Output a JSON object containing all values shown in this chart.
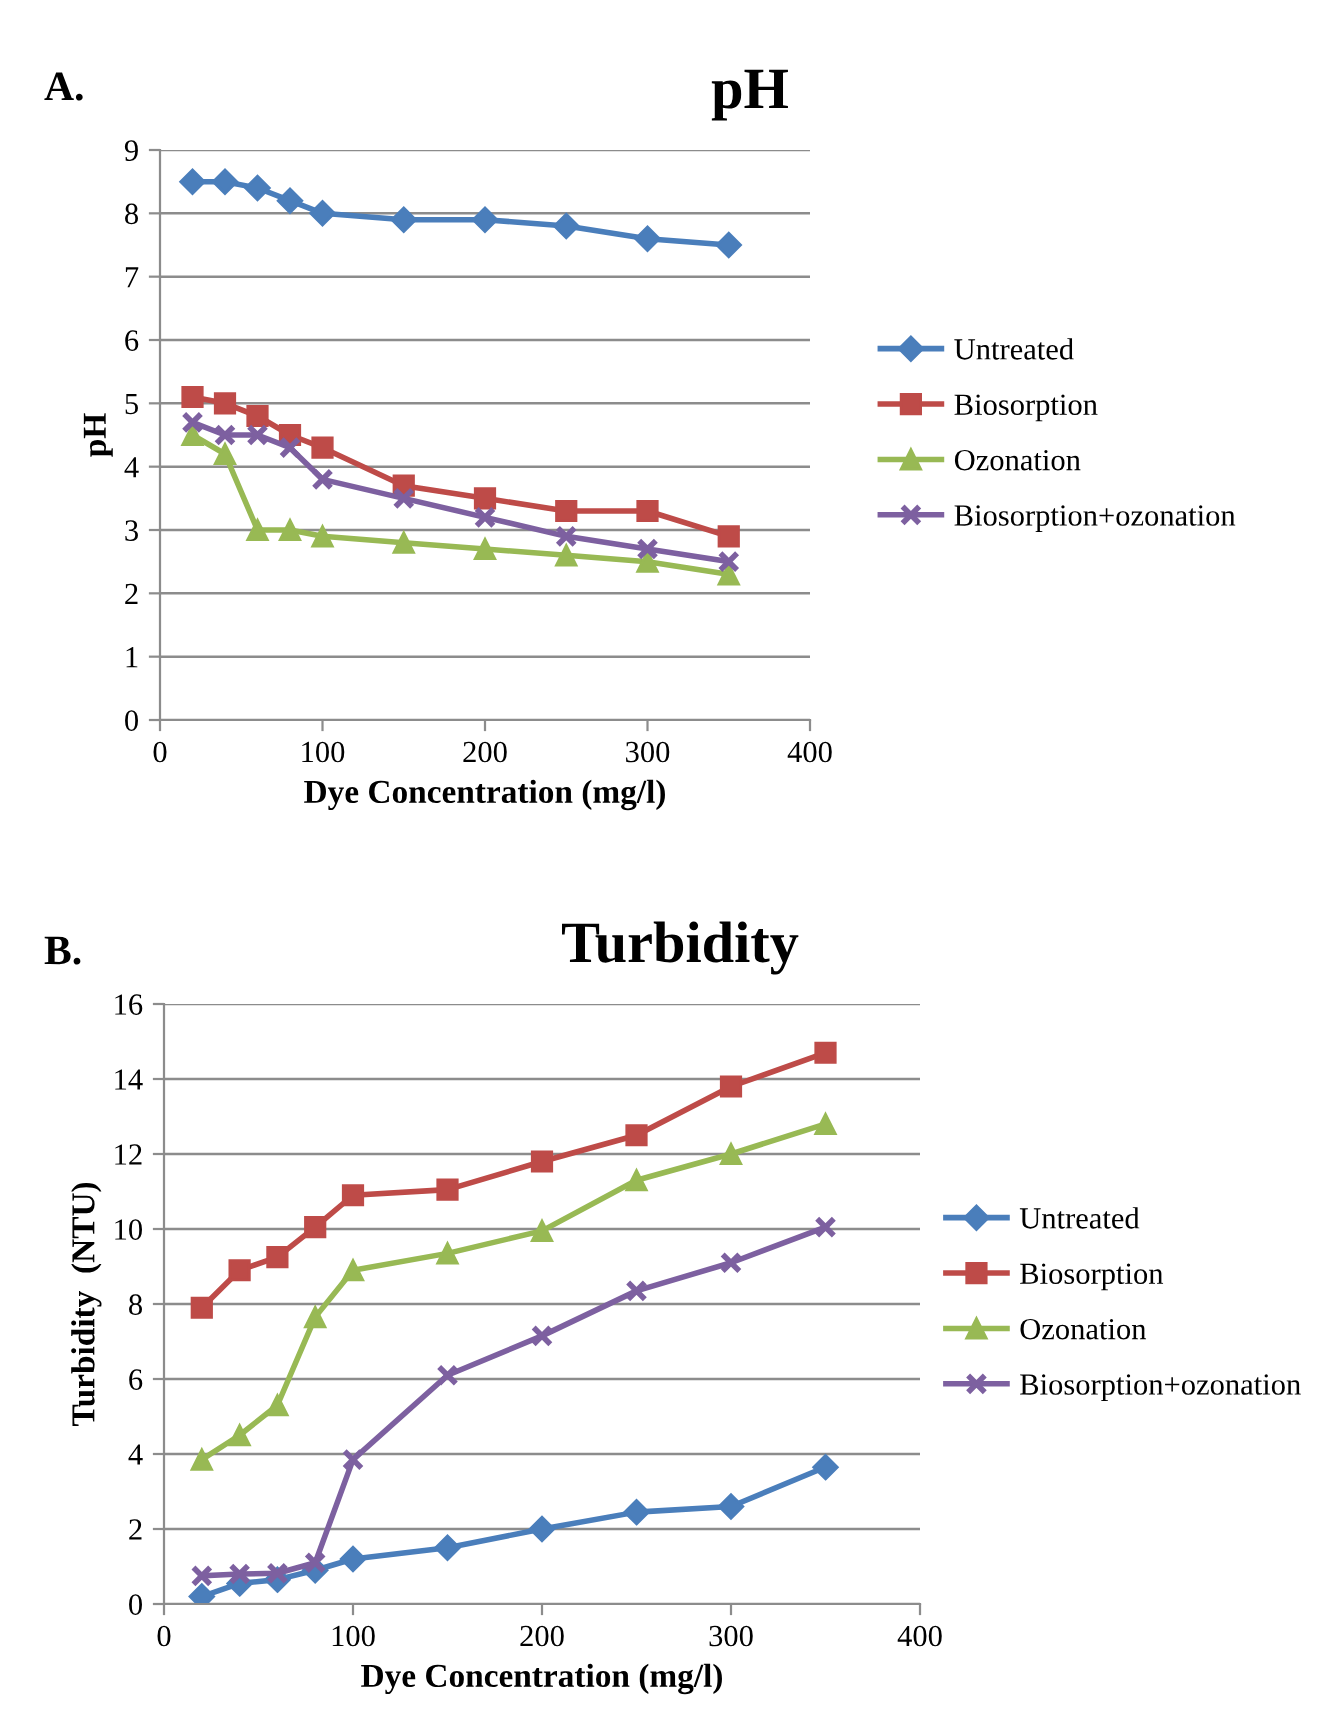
{
  "chart_data": [
    {
      "type": "line",
      "title": "pH",
      "xlabel": "Dye Concentration (mg/l)",
      "ylabel": "pH",
      "annotations": [
        "A."
      ],
      "x": [
        20,
        40,
        60,
        80,
        100,
        150,
        200,
        250,
        300,
        350
      ],
      "series": [
        {
          "name": "Untreated",
          "color": "#4a7ebb",
          "marker": "diamond",
          "values": [
            8.5,
            8.5,
            8.4,
            8.2,
            8.0,
            7.9,
            7.9,
            7.8,
            7.6,
            7.5
          ]
        },
        {
          "name": "Biosorption",
          "color": "#be4b48",
          "marker": "square",
          "values": [
            5.1,
            5.0,
            4.8,
            4.5,
            4.3,
            3.7,
            3.5,
            3.3,
            3.3,
            2.9
          ]
        },
        {
          "name": "Ozonation",
          "color": "#98b954",
          "marker": "triangle",
          "values": [
            4.5,
            4.2,
            3.0,
            3.0,
            2.9,
            2.8,
            2.7,
            2.6,
            2.5,
            2.3
          ]
        },
        {
          "name": "Biosorption+ozonation",
          "color": "#7d60a0",
          "marker": "cross",
          "values": [
            4.7,
            4.5,
            4.5,
            4.3,
            3.8,
            3.5,
            3.2,
            2.9,
            2.7,
            2.5
          ]
        }
      ],
      "xlim": [
        0,
        400
      ],
      "xticks": [
        0,
        100,
        200,
        300,
        400
      ],
      "ylim": [
        0,
        9
      ],
      "yticks": [
        0,
        1,
        2,
        3,
        4,
        5,
        6,
        7,
        8,
        9
      ],
      "grid": "y",
      "legend": "right"
    },
    {
      "type": "line",
      "title": "Turbidity",
      "xlabel": "Dye Concentration (mg/l)",
      "ylabel": "Turbidity  (NTU)",
      "annotations": [
        "B."
      ],
      "x": [
        20,
        40,
        60,
        80,
        100,
        150,
        200,
        250,
        300,
        350
      ],
      "series": [
        {
          "name": "Untreated",
          "color": "#4a7ebb",
          "marker": "diamond",
          "values": [
            0.2,
            0.55,
            0.65,
            0.9,
            1.2,
            1.5,
            2.0,
            2.45,
            2.6,
            3.65
          ]
        },
        {
          "name": "Biosorption",
          "color": "#be4b48",
          "marker": "square",
          "values": [
            7.9,
            8.9,
            9.25,
            10.05,
            10.9,
            11.05,
            11.8,
            12.5,
            13.8,
            14.7
          ]
        },
        {
          "name": "Ozonation",
          "color": "#98b954",
          "marker": "triangle",
          "values": [
            3.85,
            4.5,
            5.3,
            7.65,
            8.9,
            9.35,
            9.95,
            11.3,
            12.0,
            12.8
          ]
        },
        {
          "name": "Biosorption+ozonation",
          "color": "#7d60a0",
          "marker": "cross",
          "values": [
            0.75,
            0.8,
            0.82,
            1.1,
            3.85,
            6.1,
            7.15,
            8.35,
            9.1,
            10.05
          ]
        }
      ],
      "xlim": [
        0,
        400
      ],
      "xticks": [
        0,
        100,
        200,
        300,
        400
      ],
      "ylim": [
        0,
        16
      ],
      "yticks": [
        0,
        2,
        4,
        6,
        8,
        10,
        12,
        14,
        16
      ],
      "grid": "y",
      "legend": "right"
    }
  ]
}
